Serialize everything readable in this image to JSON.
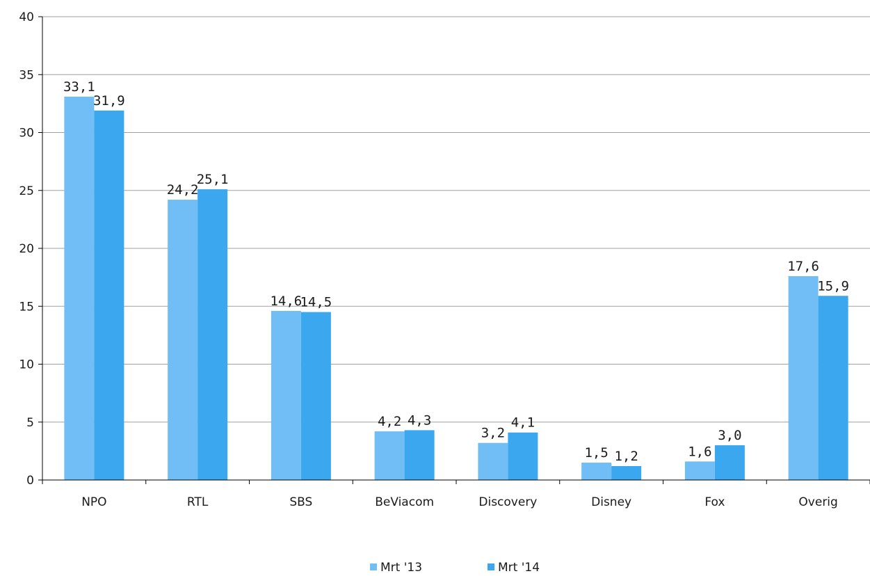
{
  "chart_data": {
    "type": "bar",
    "categories": [
      "NPO",
      "RTL",
      "SBS",
      "BeViacom",
      "Discovery",
      "Disney",
      "Fox",
      "Overig"
    ],
    "series": [
      {
        "name": "Mrt '13",
        "color": "#70bef5",
        "values": [
          33.1,
          24.2,
          14.6,
          4.2,
          3.2,
          1.5,
          1.6,
          17.6
        ],
        "labels": [
          "33,1",
          "24,2",
          "14,6",
          "4,2",
          "3,2",
          "1,5",
          "1,6",
          "17,6"
        ]
      },
      {
        "name": "Mrt '14",
        "color": "#3aa7ef",
        "values": [
          31.9,
          25.1,
          14.5,
          4.3,
          4.1,
          1.2,
          3.0,
          15.9
        ],
        "labels": [
          "31,9",
          "25,1",
          "14,5",
          "4,3",
          "4,1",
          "1,2",
          "3,0",
          "15,9"
        ]
      }
    ],
    "ylim": [
      0,
      40
    ],
    "yticks": [
      0,
      5,
      10,
      15,
      20,
      25,
      30,
      35,
      40
    ],
    "xlabel": "",
    "ylabel": "",
    "grid": true,
    "legend_position": "bottom-center",
    "gridline_color": "#a0a0a0",
    "axis_color": "#000000"
  }
}
